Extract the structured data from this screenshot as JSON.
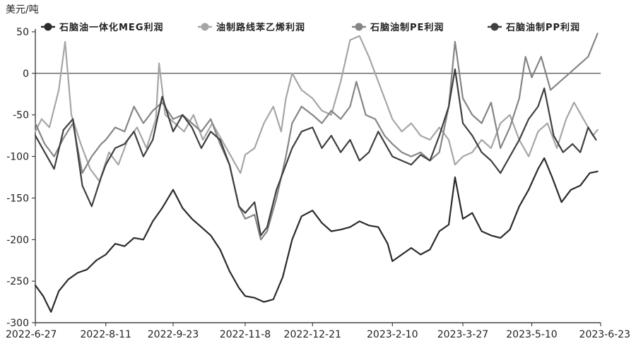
{
  "chart_data": {
    "type": "line",
    "ylabel": "美元/吨",
    "ylim": [
      -300,
      50
    ],
    "yticks": [
      50,
      0,
      -50,
      -100,
      -150,
      -200,
      -250,
      -300
    ],
    "xlim": [
      "2022-06-27",
      "2023-06-23"
    ],
    "xticks": [
      "2022-6-27",
      "2022-8-11",
      "2022-9-23",
      "2022-11-8",
      "2022-12-21",
      "2023-2-10",
      "2023-3-27",
      "2023-5-10",
      "2023-6-23"
    ],
    "grid": false,
    "legend_position": "top",
    "series": [
      {
        "name": "石脑油一体化MEG利润",
        "color": "#2b2b2b",
        "points": [
          [
            "2022-06-27",
            -255
          ],
          [
            "2022-07-02",
            -268
          ],
          [
            "2022-07-07",
            -287
          ],
          [
            "2022-07-12",
            -262
          ],
          [
            "2022-07-18",
            -248
          ],
          [
            "2022-07-24",
            -240
          ],
          [
            "2022-07-30",
            -236
          ],
          [
            "2022-08-05",
            -225
          ],
          [
            "2022-08-11",
            -218
          ],
          [
            "2022-08-17",
            -205
          ],
          [
            "2022-08-23",
            -208
          ],
          [
            "2022-08-29",
            -198
          ],
          [
            "2022-09-04",
            -200
          ],
          [
            "2022-09-10",
            -178
          ],
          [
            "2022-09-16",
            -162
          ],
          [
            "2022-09-23",
            -140
          ],
          [
            "2022-09-29",
            -162
          ],
          [
            "2022-10-05",
            -175
          ],
          [
            "2022-10-11",
            -185
          ],
          [
            "2022-10-17",
            -195
          ],
          [
            "2022-10-23",
            -212
          ],
          [
            "2022-10-29",
            -238
          ],
          [
            "2022-11-04",
            -258
          ],
          [
            "2022-11-08",
            -268
          ],
          [
            "2022-11-14",
            -270
          ],
          [
            "2022-11-20",
            -275
          ],
          [
            "2022-11-26",
            -272
          ],
          [
            "2022-12-02",
            -245
          ],
          [
            "2022-12-08",
            -200
          ],
          [
            "2022-12-14",
            -172
          ],
          [
            "2022-12-21",
            -165
          ],
          [
            "2022-12-27",
            -180
          ],
          [
            "2023-01-02",
            -190
          ],
          [
            "2023-01-08",
            -188
          ],
          [
            "2023-01-14",
            -185
          ],
          [
            "2023-01-20",
            -178
          ],
          [
            "2023-01-26",
            -183
          ],
          [
            "2023-02-01",
            -185
          ],
          [
            "2023-02-07",
            -205
          ],
          [
            "2023-02-10",
            -226
          ],
          [
            "2023-02-16",
            -218
          ],
          [
            "2023-02-22",
            -210
          ],
          [
            "2023-02-28",
            -218
          ],
          [
            "2023-03-06",
            -212
          ],
          [
            "2023-03-12",
            -190
          ],
          [
            "2023-03-18",
            -182
          ],
          [
            "2023-03-22",
            -125
          ],
          [
            "2023-03-27",
            -175
          ],
          [
            "2023-04-02",
            -168
          ],
          [
            "2023-04-08",
            -190
          ],
          [
            "2023-04-14",
            -195
          ],
          [
            "2023-04-20",
            -198
          ],
          [
            "2023-04-26",
            -188
          ],
          [
            "2023-05-02",
            -160
          ],
          [
            "2023-05-08",
            -140
          ],
          [
            "2023-05-14",
            -115
          ],
          [
            "2023-05-18",
            -102
          ],
          [
            "2023-05-23",
            -125
          ],
          [
            "2023-05-29",
            -155
          ],
          [
            "2023-06-04",
            -140
          ],
          [
            "2023-06-10",
            -135
          ],
          [
            "2023-06-16",
            -120
          ],
          [
            "2023-06-21",
            -118
          ]
        ]
      },
      {
        "name": "油制路线苯乙烯利润",
        "color": "#a6a6a6",
        "points": [
          [
            "2022-06-27",
            -70
          ],
          [
            "2022-07-01",
            -55
          ],
          [
            "2022-07-06",
            -65
          ],
          [
            "2022-07-12",
            -20
          ],
          [
            "2022-07-16",
            38
          ],
          [
            "2022-07-20",
            -50
          ],
          [
            "2022-07-26",
            -85
          ],
          [
            "2022-08-01",
            -115
          ],
          [
            "2022-08-07",
            -130
          ],
          [
            "2022-08-13",
            -95
          ],
          [
            "2022-08-19",
            -110
          ],
          [
            "2022-08-25",
            -80
          ],
          [
            "2022-08-31",
            -65
          ],
          [
            "2022-09-06",
            -90
          ],
          [
            "2022-09-12",
            -55
          ],
          [
            "2022-09-14",
            12
          ],
          [
            "2022-09-18",
            -50
          ],
          [
            "2022-09-24",
            -60
          ],
          [
            "2022-09-30",
            -70
          ],
          [
            "2022-10-06",
            -50
          ],
          [
            "2022-10-12",
            -80
          ],
          [
            "2022-10-18",
            -60
          ],
          [
            "2022-10-24",
            -80
          ],
          [
            "2022-10-30",
            -100
          ],
          [
            "2022-11-05",
            -120
          ],
          [
            "2022-11-08",
            -98
          ],
          [
            "2022-11-14",
            -90
          ],
          [
            "2022-11-20",
            -60
          ],
          [
            "2022-11-26",
            -40
          ],
          [
            "2022-12-01",
            -70
          ],
          [
            "2022-12-04",
            -30
          ],
          [
            "2022-12-08",
            0
          ],
          [
            "2022-12-14",
            -20
          ],
          [
            "2022-12-21",
            -30
          ],
          [
            "2022-12-27",
            -45
          ],
          [
            "2023-01-02",
            -50
          ],
          [
            "2023-01-08",
            -10
          ],
          [
            "2023-01-14",
            40
          ],
          [
            "2023-01-20",
            45
          ],
          [
            "2023-01-26",
            20
          ],
          [
            "2023-02-01",
            -10
          ],
          [
            "2023-02-07",
            -40
          ],
          [
            "2023-02-10",
            -55
          ],
          [
            "2023-02-16",
            -70
          ],
          [
            "2023-02-22",
            -60
          ],
          [
            "2023-02-28",
            -75
          ],
          [
            "2023-03-06",
            -80
          ],
          [
            "2023-03-12",
            -65
          ],
          [
            "2023-03-18",
            -80
          ],
          [
            "2023-03-22",
            -110
          ],
          [
            "2023-03-27",
            -100
          ],
          [
            "2023-04-02",
            -95
          ],
          [
            "2023-04-08",
            -80
          ],
          [
            "2023-04-14",
            -90
          ],
          [
            "2023-04-20",
            -60
          ],
          [
            "2023-04-26",
            -50
          ],
          [
            "2023-05-02",
            -80
          ],
          [
            "2023-05-08",
            -100
          ],
          [
            "2023-05-14",
            -70
          ],
          [
            "2023-05-20",
            -60
          ],
          [
            "2023-05-26",
            -90
          ],
          [
            "2023-06-01",
            -55
          ],
          [
            "2023-06-06",
            -35
          ],
          [
            "2023-06-12",
            -55
          ],
          [
            "2023-06-18",
            -75
          ],
          [
            "2023-06-21",
            -68
          ]
        ]
      },
      {
        "name": "石脑油制PE利润",
        "color": "#858585",
        "points": [
          [
            "2022-06-27",
            -60
          ],
          [
            "2022-07-03",
            -85
          ],
          [
            "2022-07-09",
            -100
          ],
          [
            "2022-07-15",
            -78
          ],
          [
            "2022-07-21",
            -60
          ],
          [
            "2022-07-27",
            -120
          ],
          [
            "2022-08-02",
            -100
          ],
          [
            "2022-08-08",
            -85
          ],
          [
            "2022-08-11",
            -80
          ],
          [
            "2022-08-17",
            -65
          ],
          [
            "2022-08-23",
            -70
          ],
          [
            "2022-08-29",
            -40
          ],
          [
            "2022-09-04",
            -60
          ],
          [
            "2022-09-10",
            -45
          ],
          [
            "2022-09-16",
            -35
          ],
          [
            "2022-09-23",
            -55
          ],
          [
            "2022-09-29",
            -50
          ],
          [
            "2022-10-05",
            -60
          ],
          [
            "2022-10-11",
            -70
          ],
          [
            "2022-10-17",
            -55
          ],
          [
            "2022-10-23",
            -85
          ],
          [
            "2022-10-29",
            -110
          ],
          [
            "2022-11-04",
            -160
          ],
          [
            "2022-11-08",
            -175
          ],
          [
            "2022-11-14",
            -170
          ],
          [
            "2022-11-18",
            -200
          ],
          [
            "2022-11-22",
            -190
          ],
          [
            "2022-11-28",
            -150
          ],
          [
            "2022-12-04",
            -100
          ],
          [
            "2022-12-08",
            -60
          ],
          [
            "2022-12-14",
            -40
          ],
          [
            "2022-12-21",
            -50
          ],
          [
            "2022-12-27",
            -60
          ],
          [
            "2023-01-02",
            -45
          ],
          [
            "2023-01-08",
            -55
          ],
          [
            "2023-01-14",
            -40
          ],
          [
            "2023-01-18",
            -10
          ],
          [
            "2023-01-24",
            -50
          ],
          [
            "2023-01-30",
            -55
          ],
          [
            "2023-02-05",
            -75
          ],
          [
            "2023-02-10",
            -85
          ],
          [
            "2023-02-16",
            -95
          ],
          [
            "2023-02-22",
            -100
          ],
          [
            "2023-02-28",
            -95
          ],
          [
            "2023-03-06",
            -105
          ],
          [
            "2023-03-12",
            -95
          ],
          [
            "2023-03-18",
            -40
          ],
          [
            "2023-03-22",
            38
          ],
          [
            "2023-03-27",
            -30
          ],
          [
            "2023-04-02",
            -50
          ],
          [
            "2023-04-08",
            -60
          ],
          [
            "2023-04-14",
            -35
          ],
          [
            "2023-04-20",
            -90
          ],
          [
            "2023-04-26",
            -65
          ],
          [
            "2023-05-02",
            -30
          ],
          [
            "2023-05-06",
            20
          ],
          [
            "2023-05-10",
            -5
          ],
          [
            "2023-05-16",
            20
          ],
          [
            "2023-05-22",
            -20
          ],
          [
            "2023-05-28",
            -10
          ],
          [
            "2023-06-03",
            0
          ],
          [
            "2023-06-09",
            10
          ],
          [
            "2023-06-15",
            20
          ],
          [
            "2023-06-21",
            48
          ]
        ]
      },
      {
        "name": "石脑油制PP利润",
        "color": "#3f3f3f",
        "points": [
          [
            "2022-06-27",
            -75
          ],
          [
            "2022-07-03",
            -95
          ],
          [
            "2022-07-09",
            -115
          ],
          [
            "2022-07-15",
            -68
          ],
          [
            "2022-07-21",
            -55
          ],
          [
            "2022-07-27",
            -135
          ],
          [
            "2022-08-02",
            -160
          ],
          [
            "2022-08-08",
            -125
          ],
          [
            "2022-08-11",
            -110
          ],
          [
            "2022-08-17",
            -90
          ],
          [
            "2022-08-23",
            -85
          ],
          [
            "2022-08-29",
            -70
          ],
          [
            "2022-09-04",
            -100
          ],
          [
            "2022-09-10",
            -80
          ],
          [
            "2022-09-16",
            -28
          ],
          [
            "2022-09-23",
            -70
          ],
          [
            "2022-09-29",
            -50
          ],
          [
            "2022-10-05",
            -65
          ],
          [
            "2022-10-11",
            -90
          ],
          [
            "2022-10-17",
            -70
          ],
          [
            "2022-10-23",
            -80
          ],
          [
            "2022-10-29",
            -110
          ],
          [
            "2022-11-04",
            -160
          ],
          [
            "2022-11-08",
            -168
          ],
          [
            "2022-11-14",
            -155
          ],
          [
            "2022-11-18",
            -195
          ],
          [
            "2022-11-22",
            -185
          ],
          [
            "2022-11-28",
            -140
          ],
          [
            "2022-12-04",
            -110
          ],
          [
            "2022-12-08",
            -90
          ],
          [
            "2022-12-14",
            -70
          ],
          [
            "2022-12-21",
            -65
          ],
          [
            "2022-12-27",
            -90
          ],
          [
            "2023-01-02",
            -75
          ],
          [
            "2023-01-08",
            -95
          ],
          [
            "2023-01-14",
            -80
          ],
          [
            "2023-01-20",
            -105
          ],
          [
            "2023-01-26",
            -95
          ],
          [
            "2023-02-01",
            -70
          ],
          [
            "2023-02-07",
            -90
          ],
          [
            "2023-02-10",
            -100
          ],
          [
            "2023-02-16",
            -105
          ],
          [
            "2023-02-22",
            -110
          ],
          [
            "2023-02-28",
            -98
          ],
          [
            "2023-03-06",
            -105
          ],
          [
            "2023-03-12",
            -75
          ],
          [
            "2023-03-18",
            -40
          ],
          [
            "2023-03-22",
            5
          ],
          [
            "2023-03-27",
            -60
          ],
          [
            "2023-04-02",
            -75
          ],
          [
            "2023-04-08",
            -95
          ],
          [
            "2023-04-14",
            -105
          ],
          [
            "2023-04-20",
            -120
          ],
          [
            "2023-04-26",
            -100
          ],
          [
            "2023-05-02",
            -80
          ],
          [
            "2023-05-08",
            -55
          ],
          [
            "2023-05-14",
            -40
          ],
          [
            "2023-05-18",
            -18
          ],
          [
            "2023-05-24",
            -75
          ],
          [
            "2023-05-30",
            -95
          ],
          [
            "2023-06-05",
            -85
          ],
          [
            "2023-06-10",
            -95
          ],
          [
            "2023-06-15",
            -65
          ],
          [
            "2023-06-20",
            -80
          ]
        ]
      }
    ]
  }
}
